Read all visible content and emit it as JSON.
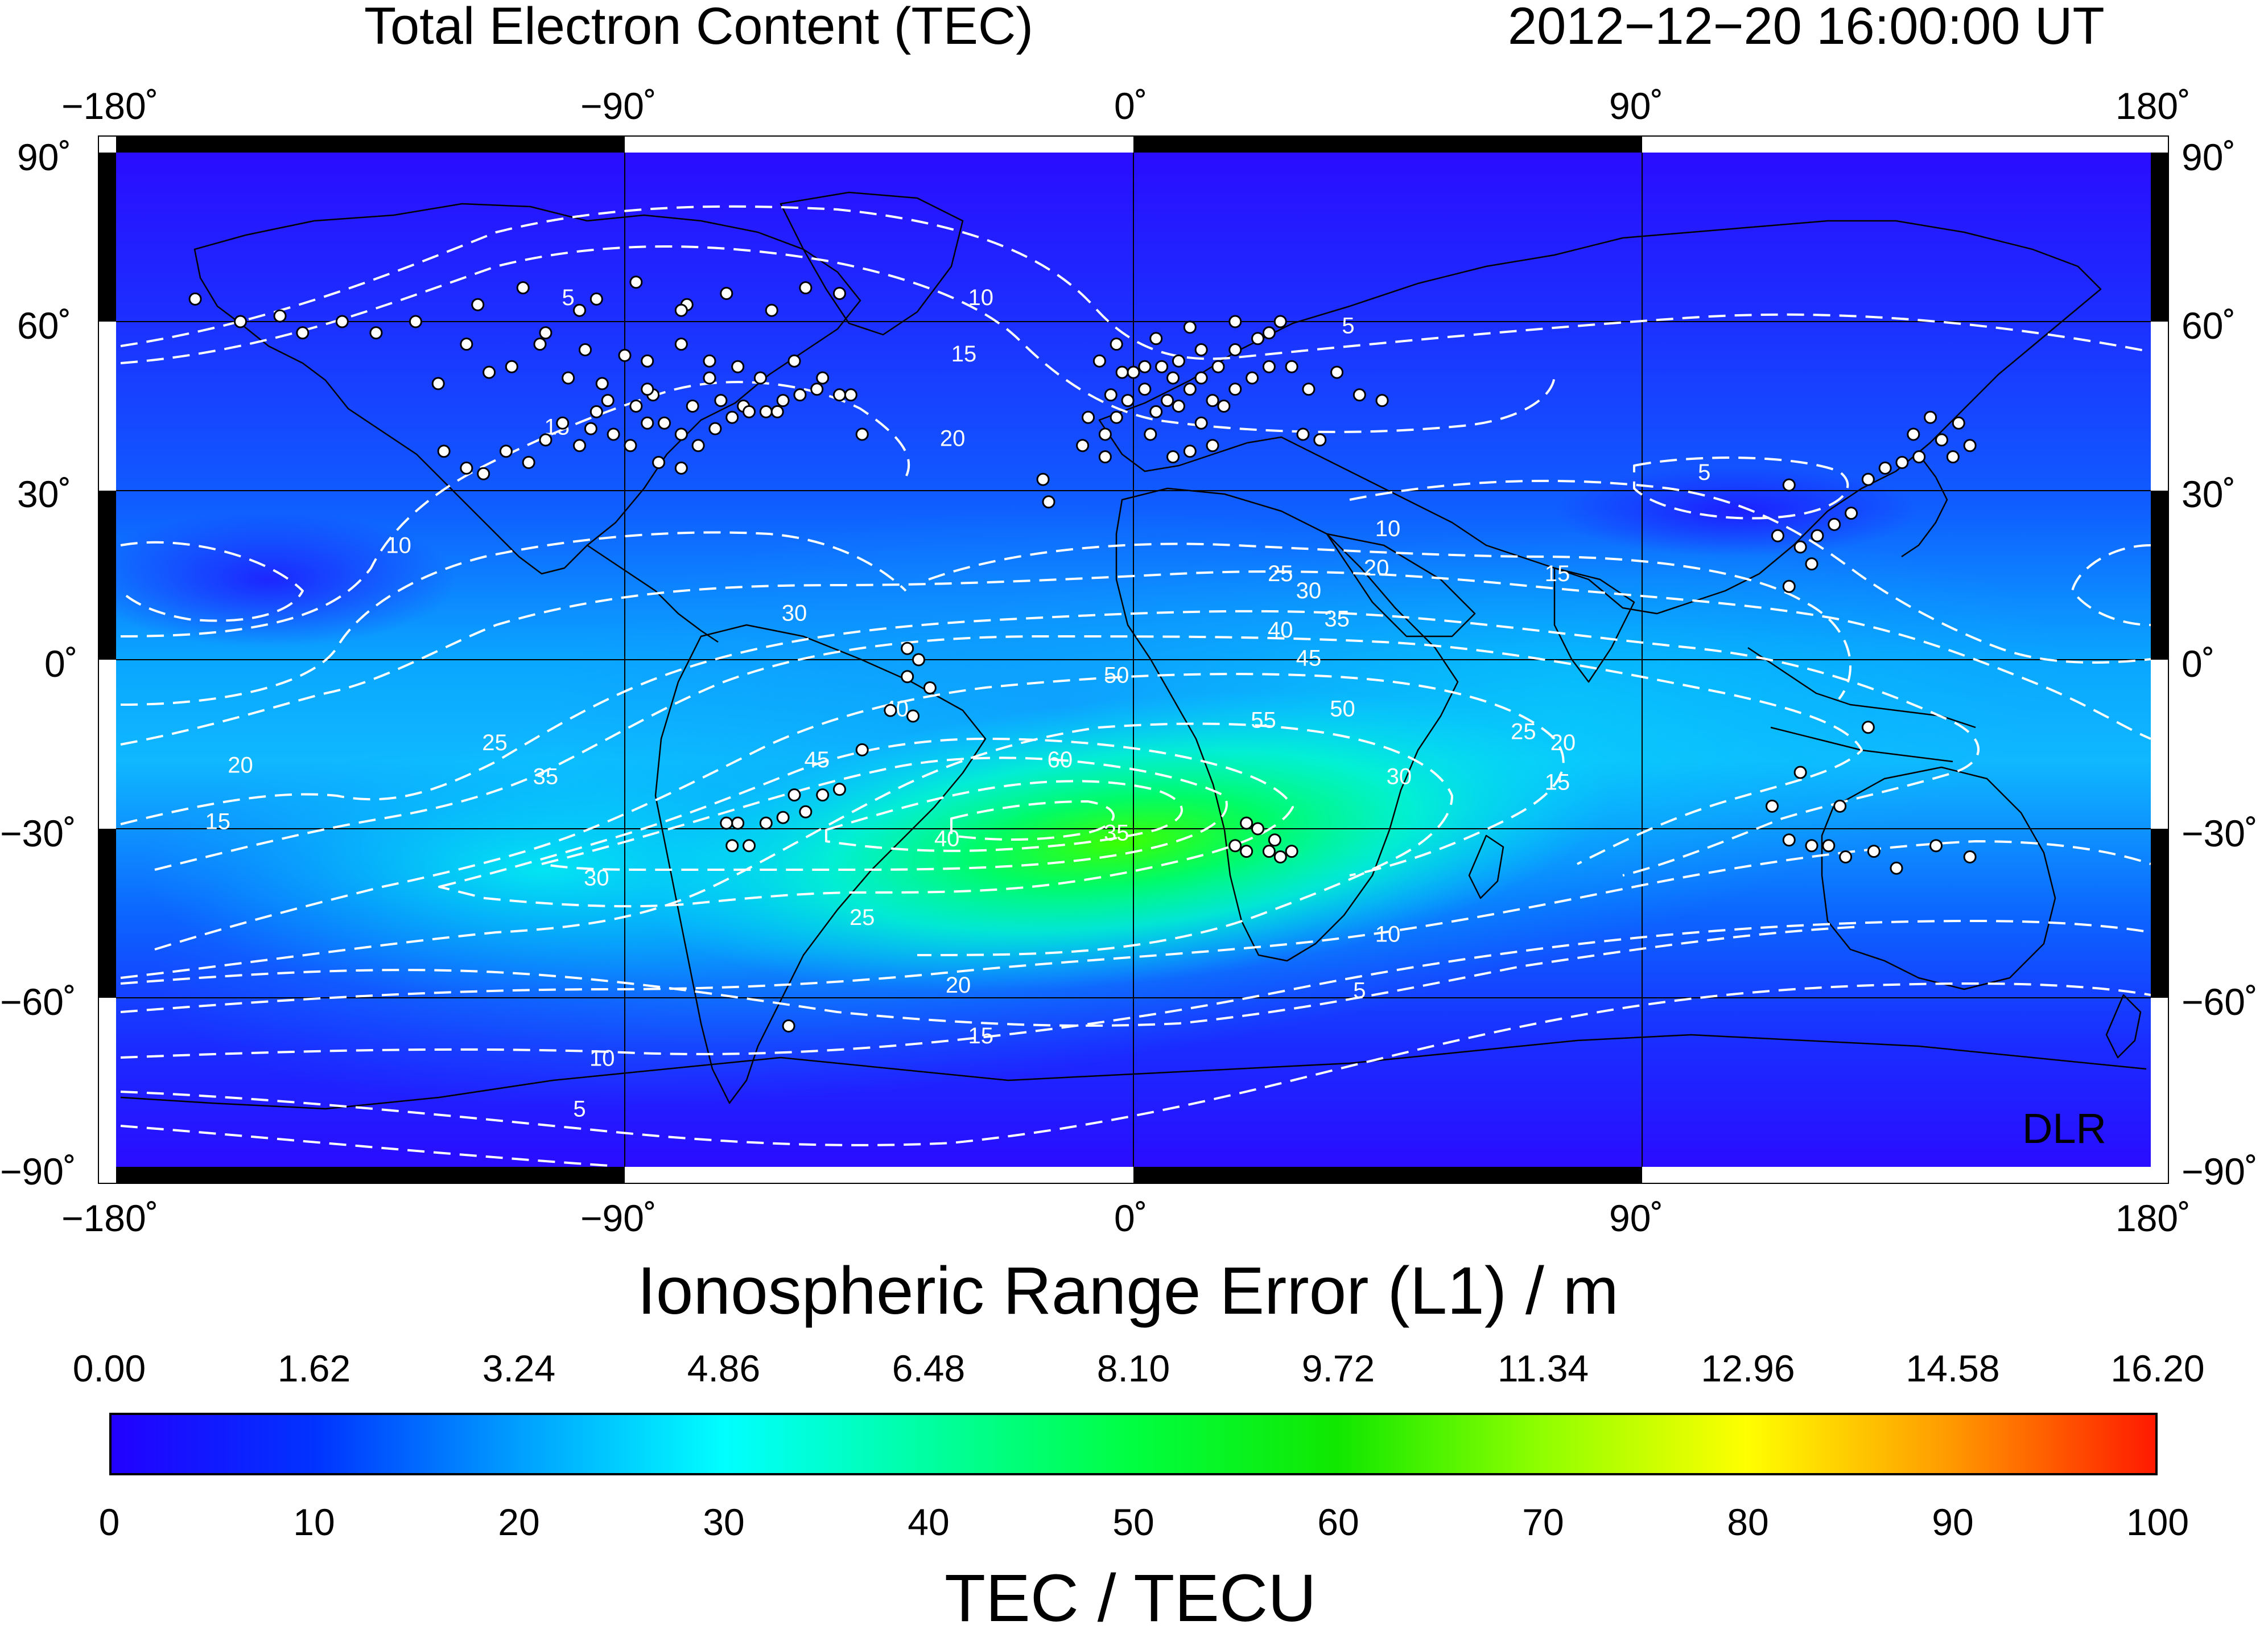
{
  "header": {
    "title": "Total Electron Content (TEC)",
    "timestamp": "2012−12−20  16:00:00 UT"
  },
  "map": {
    "lon_labels": [
      "−180˚",
      "−90˚",
      "0˚",
      "90˚",
      "180˚"
    ],
    "lat_labels": [
      "90˚",
      "60˚",
      "30˚",
      "0˚",
      "−30˚",
      "−60˚",
      "−90˚"
    ],
    "watermark": "DLR",
    "contour_labels": [
      {
        "text": "5",
        "lon": -100,
        "lat": 64
      },
      {
        "text": "10",
        "lon": -27,
        "lat": 64
      },
      {
        "text": "5",
        "lon": 38,
        "lat": 59
      },
      {
        "text": "15",
        "lon": -30,
        "lat": 54
      },
      {
        "text": "20",
        "lon": -32,
        "lat": 39
      },
      {
        "text": "15",
        "lon": -102,
        "lat": 41
      },
      {
        "text": "10",
        "lon": -130,
        "lat": 20
      },
      {
        "text": "5",
        "lon": 101,
        "lat": 33
      },
      {
        "text": "10",
        "lon": 45,
        "lat": 23
      },
      {
        "text": "20",
        "lon": 43,
        "lat": 16
      },
      {
        "text": "15",
        "lon": 75,
        "lat": 15
      },
      {
        "text": "25",
        "lon": 26,
        "lat": 15
      },
      {
        "text": "30",
        "lon": 31,
        "lat": 12
      },
      {
        "text": "35",
        "lon": 36,
        "lat": 7
      },
      {
        "text": "40",
        "lon": 26,
        "lat": 5
      },
      {
        "text": "45",
        "lon": 31,
        "lat": 0
      },
      {
        "text": "50",
        "lon": -3,
        "lat": -3
      },
      {
        "text": "50",
        "lon": 37,
        "lat": -9
      },
      {
        "text": "55",
        "lon": 23,
        "lat": -11
      },
      {
        "text": "60",
        "lon": -13,
        "lat": -18
      },
      {
        "text": "40",
        "lon": -42,
        "lat": -9
      },
      {
        "text": "45",
        "lon": -56,
        "lat": -18
      },
      {
        "text": "35",
        "lon": -104,
        "lat": -21
      },
      {
        "text": "30",
        "lon": -60,
        "lat": 8
      },
      {
        "text": "30",
        "lon": 47,
        "lat": -21
      },
      {
        "text": "25",
        "lon": -113,
        "lat": -15
      },
      {
        "text": "25",
        "lon": 69,
        "lat": -13
      },
      {
        "text": "20",
        "lon": -158,
        "lat": -19
      },
      {
        "text": "20",
        "lon": 76,
        "lat": -15
      },
      {
        "text": "15",
        "lon": 75,
        "lat": -22
      },
      {
        "text": "15",
        "lon": -162,
        "lat": -29
      },
      {
        "text": "40",
        "lon": -33,
        "lat": -32
      },
      {
        "text": "35",
        "lon": -3,
        "lat": -31
      },
      {
        "text": "30",
        "lon": -95,
        "lat": -39
      },
      {
        "text": "25",
        "lon": -48,
        "lat": -46
      },
      {
        "text": "20",
        "lon": -31,
        "lat": -58
      },
      {
        "text": "15",
        "lon": -27,
        "lat": -67
      },
      {
        "text": "10",
        "lon": 45,
        "lat": -49
      },
      {
        "text": "5",
        "lon": 40,
        "lat": -59
      },
      {
        "text": "10",
        "lon": -94,
        "lat": -71
      },
      {
        "text": "5",
        "lon": -98,
        "lat": -80
      }
    ],
    "stations_north_america": [
      [
        -166,
        64
      ],
      [
        -158,
        60
      ],
      [
        -151,
        61
      ],
      [
        -147,
        58
      ],
      [
        -140,
        60
      ],
      [
        -134,
        58
      ],
      [
        -127,
        60
      ],
      [
        -123,
        49
      ],
      [
        -118,
        56
      ],
      [
        -114,
        51
      ],
      [
        -110,
        52
      ],
      [
        -105,
        56
      ],
      [
        -100,
        50
      ],
      [
        -97,
        55
      ],
      [
        -94,
        49
      ],
      [
        -90,
        54
      ],
      [
        -86,
        53
      ],
      [
        -80,
        56
      ],
      [
        -75,
        53
      ],
      [
        -70,
        52
      ],
      [
        -66,
        50
      ],
      [
        -60,
        53
      ],
      [
        -56,
        48
      ],
      [
        -52,
        47
      ],
      [
        -122,
        37
      ],
      [
        -118,
        34
      ],
      [
        -115,
        33
      ],
      [
        -111,
        37
      ],
      [
        -107,
        35
      ],
      [
        -104,
        39
      ],
      [
        -101,
        42
      ],
      [
        -98,
        38
      ],
      [
        -95,
        44
      ],
      [
        -92,
        40
      ],
      [
        -89,
        38
      ],
      [
        -86,
        42
      ],
      [
        -83,
        42
      ],
      [
        -80,
        40
      ],
      [
        -77,
        38
      ],
      [
        -74,
        41
      ],
      [
        -71,
        43
      ],
      [
        -69,
        45
      ],
      [
        -65,
        44
      ],
      [
        -62,
        46
      ],
      [
        -59,
        47
      ],
      [
        -55,
        50
      ],
      [
        -50,
        47
      ],
      [
        -48,
        40
      ],
      [
        -116,
        63
      ],
      [
        -108,
        66
      ],
      [
        -98,
        62
      ],
      [
        -88,
        67
      ],
      [
        -79,
        63
      ],
      [
        -72,
        65
      ],
      [
        -64,
        62
      ],
      [
        -58,
        66
      ],
      [
        -52,
        65
      ],
      [
        -80,
        62
      ],
      [
        -95,
        64
      ],
      [
        -104,
        58
      ],
      [
        -85,
        47
      ],
      [
        -78,
        45
      ],
      [
        -73,
        46
      ],
      [
        -68,
        44
      ],
      [
        -63,
        44
      ],
      [
        -88,
        45
      ],
      [
        -93,
        46
      ],
      [
        -96,
        41
      ],
      [
        -84,
        35
      ],
      [
        -80,
        34
      ],
      [
        -86,
        48
      ],
      [
        -75,
        50
      ]
    ],
    "stations_europe": [
      [
        -9,
        38
      ],
      [
        -8,
        43
      ],
      [
        -5,
        40
      ],
      [
        -3,
        43
      ],
      [
        -1,
        46
      ],
      [
        2,
        48
      ],
      [
        4,
        44
      ],
      [
        6,
        46
      ],
      [
        8,
        45
      ],
      [
        10,
        48
      ],
      [
        12,
        42
      ],
      [
        14,
        46
      ],
      [
        16,
        45
      ],
      [
        18,
        48
      ],
      [
        21,
        50
      ],
      [
        24,
        52
      ],
      [
        28,
        52
      ],
      [
        31,
        48
      ],
      [
        36,
        51
      ],
      [
        40,
        47
      ],
      [
        44,
        46
      ],
      [
        2,
        52
      ],
      [
        5,
        52
      ],
      [
        8,
        53
      ],
      [
        12,
        55
      ],
      [
        15,
        52
      ],
      [
        18,
        55
      ],
      [
        22,
        57
      ],
      [
        26,
        60
      ],
      [
        -3,
        56
      ],
      [
        -6,
        53
      ],
      [
        0,
        51
      ],
      [
        10,
        59
      ],
      [
        18,
        60
      ],
      [
        24,
        58
      ],
      [
        -15,
        28
      ],
      [
        -16,
        32
      ],
      [
        -5,
        36
      ],
      [
        7,
        36
      ],
      [
        10,
        37
      ],
      [
        14,
        38
      ],
      [
        3,
        40
      ],
      [
        -2,
        51
      ],
      [
        30,
        40
      ],
      [
        33,
        39
      ],
      [
        4,
        57
      ],
      [
        7,
        50
      ],
      [
        12,
        50
      ],
      [
        -4,
        47
      ]
    ],
    "stations_south_america": [
      [
        -40,
        2
      ],
      [
        -38,
        0
      ],
      [
        -40,
        -3
      ],
      [
        -36,
        -5
      ],
      [
        -39,
        -10
      ],
      [
        -43,
        -9
      ],
      [
        -48,
        -16
      ],
      [
        -52,
        -23
      ],
      [
        -55,
        -24
      ],
      [
        -58,
        -27
      ],
      [
        -60,
        -24
      ],
      [
        -65,
        -29
      ],
      [
        -70,
        -29
      ],
      [
        -72,
        -29
      ],
      [
        -68,
        -33
      ],
      [
        -71,
        -33
      ],
      [
        -62,
        -28
      ],
      [
        -61,
        -65
      ]
    ],
    "stations_africa": [
      [
        20,
        -29
      ],
      [
        18,
        -33
      ],
      [
        22,
        -30
      ],
      [
        25,
        -32
      ],
      [
        28,
        -34
      ],
      [
        24,
        -34
      ],
      [
        20,
        -34
      ],
      [
        26,
        -35
      ]
    ],
    "stations_asia": [
      [
        141,
        43
      ],
      [
        139,
        36
      ],
      [
        136,
        35
      ],
      [
        133,
        34
      ],
      [
        130,
        32
      ],
      [
        127,
        26
      ],
      [
        124,
        24
      ],
      [
        121,
        22
      ],
      [
        118,
        20
      ],
      [
        114,
        22
      ],
      [
        120,
        17
      ],
      [
        116,
        13
      ],
      [
        145,
        36
      ],
      [
        148,
        38
      ],
      [
        143,
        39
      ],
      [
        138,
        40
      ],
      [
        146,
        42
      ],
      [
        116,
        31
      ],
      [
        130,
        -12
      ],
      [
        118,
        -20
      ],
      [
        116,
        -32
      ],
      [
        120,
        -33
      ],
      [
        123,
        -33
      ],
      [
        126,
        -35
      ],
      [
        131,
        -34
      ],
      [
        135,
        -37
      ],
      [
        142,
        -33
      ],
      [
        148,
        -35
      ],
      [
        113,
        -26
      ],
      [
        125,
        -26
      ]
    ]
  },
  "colorbar": {
    "top_title": "Ionospheric Range Error (L1) / m",
    "top_ticks": [
      "0.00",
      "1.62",
      "3.24",
      "4.86",
      "6.48",
      "8.10",
      "9.72",
      "11.34",
      "12.96",
      "14.58",
      "16.20"
    ],
    "bottom_ticks": [
      "0",
      "10",
      "20",
      "30",
      "40",
      "50",
      "60",
      "70",
      "80",
      "90",
      "100"
    ],
    "bottom_title": "TEC / TECU",
    "stops": [
      "#2200ff",
      "#0033ff",
      "#00a0ff",
      "#00ffff",
      "#00ffa0",
      "#00ff40",
      "#10e800",
      "#90ff00",
      "#ffff00",
      "#ff9900",
      "#ff1a00"
    ]
  }
}
